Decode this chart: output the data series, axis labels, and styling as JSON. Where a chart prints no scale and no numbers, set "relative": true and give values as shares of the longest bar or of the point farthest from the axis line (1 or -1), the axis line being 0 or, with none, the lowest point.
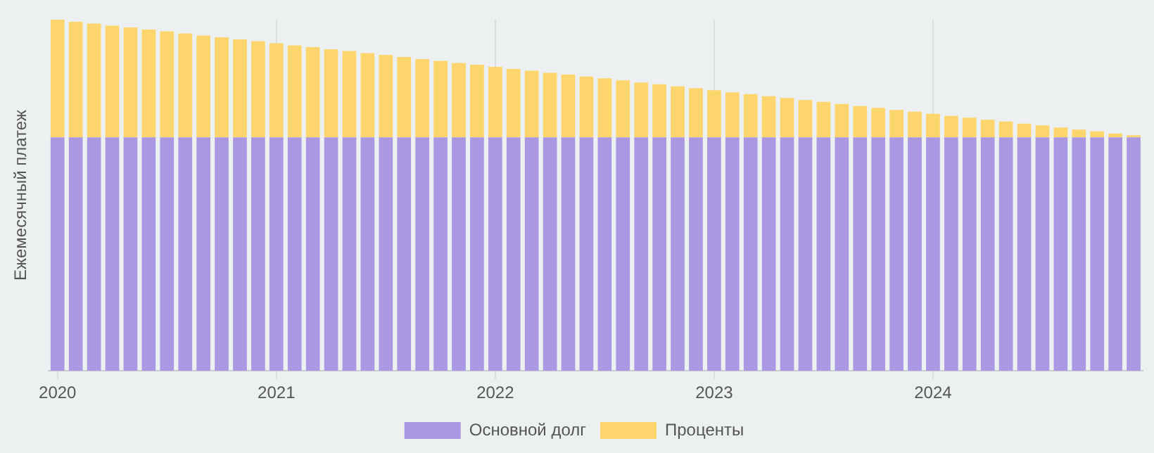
{
  "chart_data": {
    "type": "bar",
    "stacked": true,
    "relative": true,
    "ylabel": "Ежемесячный платеж",
    "grid": "x",
    "legend": "bottom",
    "categories": [
      "2020",
      null,
      null,
      null,
      null,
      null,
      null,
      null,
      null,
      null,
      null,
      null,
      "2021",
      null,
      null,
      null,
      null,
      null,
      null,
      null,
      null,
      null,
      null,
      null,
      "2022",
      null,
      null,
      null,
      null,
      null,
      null,
      null,
      null,
      null,
      null,
      null,
      "2023",
      null,
      null,
      null,
      null,
      null,
      null,
      null,
      null,
      null,
      null,
      null,
      "2024",
      null,
      null,
      null,
      null,
      null,
      null,
      null,
      null,
      null,
      null,
      null
    ],
    "series": [
      {
        "name": "Основной долг",
        "color": "#ab98e2",
        "values": [
          0.665,
          0.665,
          0.665,
          0.665,
          0.665,
          0.665,
          0.665,
          0.665,
          0.665,
          0.665,
          0.665,
          0.665,
          0.665,
          0.665,
          0.665,
          0.665,
          0.665,
          0.665,
          0.665,
          0.665,
          0.665,
          0.665,
          0.665,
          0.665,
          0.665,
          0.665,
          0.665,
          0.665,
          0.665,
          0.665,
          0.665,
          0.665,
          0.665,
          0.665,
          0.665,
          0.665,
          0.665,
          0.665,
          0.665,
          0.665,
          0.665,
          0.665,
          0.665,
          0.665,
          0.665,
          0.665,
          0.665,
          0.665,
          0.665,
          0.665,
          0.665,
          0.665,
          0.665,
          0.665,
          0.665,
          0.665,
          0.665,
          0.665,
          0.665,
          0.665
        ]
      },
      {
        "name": "Проценты",
        "color": "#fcd66c",
        "values": [
          0.335,
          0.329,
          0.324,
          0.318,
          0.313,
          0.307,
          0.302,
          0.296,
          0.29,
          0.285,
          0.279,
          0.274,
          0.268,
          0.262,
          0.257,
          0.251,
          0.246,
          0.24,
          0.235,
          0.229,
          0.223,
          0.218,
          0.212,
          0.207,
          0.201,
          0.195,
          0.19,
          0.184,
          0.179,
          0.173,
          0.168,
          0.162,
          0.156,
          0.151,
          0.145,
          0.14,
          0.134,
          0.128,
          0.123,
          0.117,
          0.112,
          0.106,
          0.101,
          0.095,
          0.089,
          0.084,
          0.078,
          0.073,
          0.067,
          0.061,
          0.056,
          0.05,
          0.045,
          0.039,
          0.034,
          0.028,
          0.022,
          0.017,
          0.011,
          0.006
        ]
      }
    ]
  }
}
